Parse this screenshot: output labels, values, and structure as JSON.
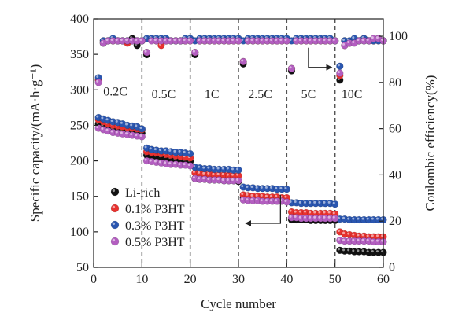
{
  "chart_data": {
    "type": "scatter",
    "xlabel": "Cycle number",
    "ylabel_left": "Specific capacity/(mA·h·g⁻¹)",
    "ylabel_right": "Coulombic efficiency(%)",
    "xlim": [
      0,
      60
    ],
    "ylim_left": [
      50,
      400
    ],
    "ylim_right": [
      0,
      107.5
    ],
    "x_ticks": [
      0,
      10,
      20,
      30,
      40,
      50,
      60
    ],
    "y_ticks_left": [
      50,
      100,
      150,
      200,
      250,
      300,
      350,
      400
    ],
    "y_ticks_right": [
      0,
      20,
      40,
      60,
      80,
      100
    ],
    "rate_labels": [
      {
        "text": "0.2C",
        "x": 4.5,
        "y": 292
      },
      {
        "text": "0.5C",
        "x": 14.5,
        "y": 288
      },
      {
        "text": "1C",
        "x": 24.5,
        "y": 288
      },
      {
        "text": "2.5C",
        "x": 34.5,
        "y": 288
      },
      {
        "text": "5C",
        "x": 44.5,
        "y": 288
      },
      {
        "text": "10C",
        "x": 53.5,
        "y": 288
      }
    ],
    "boundaries": [
      10,
      20,
      30,
      40,
      50
    ],
    "legend_position": "lower-left",
    "series": [
      {
        "name": "Li-rich",
        "color": "#111111",
        "capacity": [
          252,
          249,
          247,
          245,
          244,
          243,
          242,
          241,
          240,
          239,
          208,
          207,
          206,
          205,
          204,
          203,
          202,
          201,
          200,
          199,
          175,
          174,
          174,
          173,
          173,
          173,
          172,
          172,
          172,
          171,
          148,
          146,
          145,
          145,
          145,
          144,
          144,
          144,
          144,
          143,
          117,
          117,
          117,
          117,
          116,
          116,
          116,
          116,
          116,
          116,
          74,
          73,
          73,
          72,
          72,
          72,
          71,
          71,
          71,
          71
        ],
        "efficiency": [
          81,
          97,
          98,
          98,
          98,
          98,
          98,
          99,
          96,
          98,
          92,
          99,
          98,
          98,
          98,
          98,
          98,
          98,
          98,
          98,
          92,
          98,
          98,
          98,
          98,
          98,
          98,
          98,
          98,
          98,
          88,
          98,
          98,
          98,
          98,
          98,
          98,
          98,
          98,
          98,
          85,
          98,
          98,
          98,
          98,
          98,
          98,
          98,
          98,
          98,
          81,
          98,
          97,
          98,
          98,
          98,
          98,
          98,
          99,
          98
        ]
      },
      {
        "name": "0.1% P3HT",
        "color": "#e8322f",
        "capacity": [
          258,
          255,
          252,
          250,
          249,
          248,
          247,
          246,
          245,
          244,
          213,
          212,
          211,
          210,
          209,
          208,
          207,
          206,
          205,
          204,
          183,
          182,
          181,
          181,
          180,
          180,
          180,
          179,
          179,
          179,
          152,
          151,
          150,
          150,
          150,
          149,
          149,
          149,
          148,
          148,
          128,
          127,
          127,
          127,
          126,
          126,
          126,
          126,
          126,
          125,
          100,
          97,
          96,
          95,
          94,
          94,
          93,
          93,
          93,
          93
        ],
        "efficiency": [
          81,
          98,
          98,
          98,
          98,
          98,
          97,
          98,
          98,
          98,
          93,
          99,
          98,
          96,
          98,
          98,
          98,
          98,
          98,
          98,
          93,
          98,
          98,
          98,
          98,
          98,
          98,
          98,
          98,
          98,
          89,
          98,
          98,
          98,
          98,
          98,
          98,
          98,
          98,
          98,
          86,
          98,
          98,
          98,
          98,
          98,
          98,
          98,
          98,
          98,
          83,
          96,
          97,
          98,
          98,
          99,
          98,
          98,
          98,
          98
        ]
      },
      {
        "name": "0.3% P3HT",
        "color": "#2a56b0",
        "capacity": [
          261,
          259,
          257,
          255,
          254,
          252,
          250,
          249,
          248,
          245,
          218,
          216,
          215,
          214,
          214,
          213,
          212,
          212,
          211,
          210,
          191,
          190,
          189,
          189,
          188,
          188,
          188,
          188,
          187,
          187,
          163,
          162,
          162,
          161,
          161,
          161,
          161,
          160,
          160,
          160,
          141,
          141,
          140,
          140,
          140,
          140,
          140,
          140,
          140,
          139,
          118,
          118,
          117,
          117,
          117,
          117,
          117,
          117,
          117,
          117
        ],
        "efficiency": [
          82,
          98,
          98,
          99,
          98,
          98,
          98,
          98,
          98,
          98,
          99,
          99,
          99,
          99,
          99,
          98,
          98,
          98,
          99,
          99,
          98,
          99,
          99,
          99,
          99,
          99,
          99,
          99,
          99,
          99,
          98,
          99,
          99,
          99,
          99,
          99,
          99,
          99,
          99,
          99,
          98,
          99,
          99,
          99,
          99,
          99,
          99,
          99,
          99,
          98,
          87,
          98,
          98,
          99,
          98,
          99,
          98,
          98,
          98,
          98
        ]
      },
      {
        "name": "0.5% P3HT",
        "color": "#b35ec0",
        "capacity": [
          246,
          244,
          242,
          240,
          239,
          238,
          237,
          236,
          235,
          234,
          200,
          199,
          198,
          197,
          196,
          195,
          195,
          194,
          194,
          193,
          175,
          174,
          174,
          173,
          173,
          173,
          172,
          172,
          172,
          172,
          145,
          144,
          144,
          144,
          143,
          143,
          143,
          143,
          143,
          142,
          120,
          120,
          119,
          119,
          119,
          119,
          119,
          119,
          119,
          119,
          88,
          87,
          87,
          87,
          87,
          87,
          87,
          86,
          86,
          86
        ],
        "efficiency": [
          80,
          97,
          98,
          98,
          98,
          98,
          98,
          98,
          98,
          98,
          93,
          98,
          98,
          98,
          98,
          98,
          98,
          98,
          98,
          98,
          93,
          98,
          98,
          98,
          98,
          98,
          98,
          98,
          98,
          98,
          89,
          98,
          98,
          98,
          98,
          98,
          98,
          98,
          98,
          98,
          86,
          98,
          98,
          98,
          98,
          98,
          98,
          98,
          98,
          98,
          84,
          96,
          97,
          97,
          98,
          98,
          98,
          99,
          99,
          98
        ]
      }
    ]
  }
}
